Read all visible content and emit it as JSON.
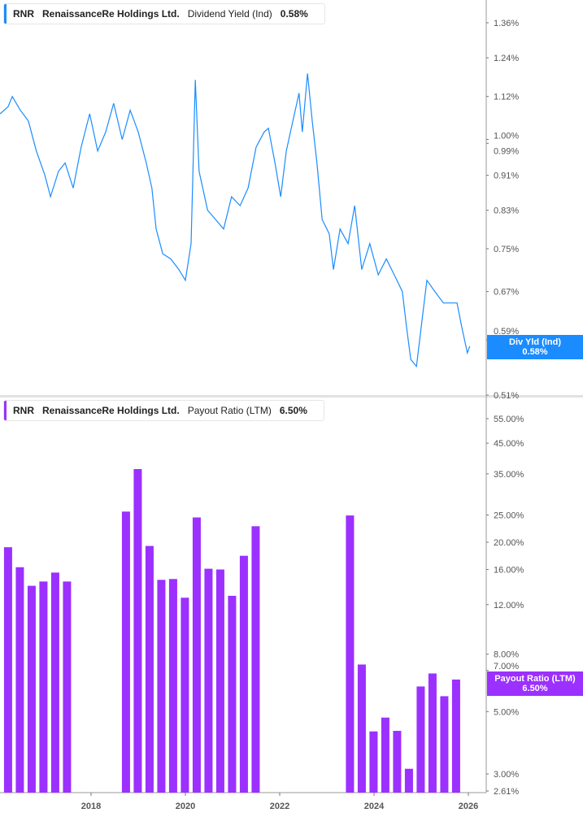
{
  "top_legend": {
    "ticker": "RNR",
    "company": "RenaissanceRe Holdings Ltd.",
    "metric": "Dividend Yield (Ind)",
    "value": "0.58%"
  },
  "top_tag": {
    "label": "Div Yld (Ind)",
    "value": "0.58%"
  },
  "bottom_legend": {
    "ticker": "RNR",
    "company": "RenaissanceRe Holdings Ltd.",
    "metric": "Payout Ratio (LTM)",
    "value": "6.50%"
  },
  "bottom_tag": {
    "label": "Payout Ratio (LTM)",
    "value": "6.50%"
  },
  "colors": {
    "yield": "#1a8cff",
    "payout": "#9b30ff"
  },
  "chart_data": [
    {
      "type": "line",
      "series": [
        {
          "name": "Dividend Yield (Ind)",
          "unit": "%",
          "x": [
            2016.07,
            2016.24,
            2016.33,
            2016.5,
            2016.67,
            2016.84,
            2017.02,
            2017.14,
            2017.31,
            2017.45,
            2017.62,
            2017.79,
            2017.97,
            2018.14,
            2018.31,
            2018.48,
            2018.66,
            2018.83,
            2019.0,
            2019.17,
            2019.29,
            2019.38,
            2019.52,
            2019.69,
            2019.86,
            2020.0,
            2020.12,
            2020.21,
            2020.29,
            2020.47,
            2020.64,
            2020.81,
            2020.98,
            2021.16,
            2021.33,
            2021.5,
            2021.67,
            2021.76,
            2021.9,
            2022.02,
            2022.14,
            2022.28,
            2022.41,
            2022.48,
            2022.59,
            2022.69,
            2022.79,
            2022.9,
            2023.05,
            2023.14,
            2023.28,
            2023.45,
            2023.59,
            2023.74,
            2023.91,
            2024.09,
            2024.26,
            2024.43,
            2024.6,
            2024.69,
            2024.78,
            2024.9,
            2025.0,
            2025.12,
            2025.29,
            2025.47,
            2025.64,
            2025.76,
            2025.86,
            2025.98,
            2026.03
          ],
          "y": [
            1.07,
            1.09,
            1.12,
            1.08,
            1.05,
            0.97,
            0.91,
            0.86,
            0.92,
            0.94,
            0.88,
            0.98,
            1.07,
            0.97,
            1.02,
            1.1,
            1.0,
            1.08,
            1.02,
            0.94,
            0.88,
            0.79,
            0.74,
            0.73,
            0.71,
            0.69,
            0.76,
            1.17,
            0.92,
            0.83,
            0.81,
            0.79,
            0.86,
            0.84,
            0.88,
            0.98,
            1.02,
            1.03,
            0.94,
            0.86,
            0.97,
            1.05,
            1.13,
            1.02,
            1.19,
            1.05,
            0.94,
            0.81,
            0.78,
            0.71,
            0.79,
            0.76,
            0.84,
            0.71,
            0.76,
            0.7,
            0.73,
            0.7,
            0.67,
            0.61,
            0.56,
            0.55,
            0.61,
            0.69,
            0.67,
            0.65,
            0.65,
            0.65,
            0.61,
            0.57,
            0.58
          ]
        }
      ],
      "x_ticks": [
        "2018",
        "2020",
        "2022",
        "2024",
        "2026"
      ],
      "y_scale": "log",
      "y_ticks": [
        "1.36%",
        "1.24%",
        "1.12%",
        "1.00%",
        "0.99%",
        "0.91%",
        "0.83%",
        "0.75%",
        "0.67%",
        "0.59%",
        "0.51%"
      ],
      "y_tick_values": [
        1.36,
        1.24,
        1.12,
        1.0,
        0.99,
        0.91,
        0.83,
        0.75,
        0.67,
        0.59,
        0.51
      ],
      "ylim": [
        0.51,
        1.36
      ],
      "xlim": [
        2016.07,
        2026.38
      ],
      "grid": false
    },
    {
      "type": "bar",
      "series": [
        {
          "name": "Payout Ratio (LTM)",
          "unit": "%",
          "categories": [
            "2016-Q1",
            "2016-Q2",
            "2016-Q3",
            "2016-Q4",
            "2017-Q1",
            "2017-Q2",
            "2018-Q3",
            "2018-Q4",
            "2019-Q1",
            "2019-Q2",
            "2019-Q3",
            "2019-Q4",
            "2020-Q1",
            "2020-Q2",
            "2020-Q3",
            "2020-Q4",
            "2021-Q1",
            "2021-Q2",
            "2023-Q2",
            "2023-Q3",
            "2023-Q4",
            "2024-Q1",
            "2024-Q2",
            "2024-Q3",
            "2024-Q4",
            "2025-Q1",
            "2025-Q2",
            "2025-Q3"
          ],
          "x": [
            2016.24,
            2016.49,
            2016.74,
            2016.99,
            2017.24,
            2017.49,
            2018.74,
            2018.99,
            2019.24,
            2019.49,
            2019.74,
            2019.99,
            2020.24,
            2020.49,
            2020.74,
            2020.99,
            2021.24,
            2021.49,
            2023.49,
            2023.74,
            2023.99,
            2024.24,
            2024.49,
            2024.74,
            2024.99,
            2025.24,
            2025.49,
            2025.74
          ],
          "values": [
            19.2,
            16.3,
            14.0,
            14.5,
            15.6,
            14.5,
            25.7,
            36.4,
            19.4,
            14.7,
            14.8,
            12.7,
            24.5,
            16.1,
            16.0,
            12.9,
            17.9,
            22.8,
            24.9,
            7.35,
            4.25,
            4.76,
            4.27,
            3.13,
            6.14,
            6.83,
            5.67,
            6.5
          ]
        }
      ],
      "y_scale": "log",
      "y_ticks": [
        "55.00%",
        "45.00%",
        "35.00%",
        "25.00%",
        "20.00%",
        "16.00%",
        "12.00%",
        "8.00%",
        "7.00%",
        "5.00%",
        "3.00%",
        "2.61%"
      ],
      "y_tick_values": [
        55,
        45,
        35,
        25,
        20,
        16,
        12,
        8,
        7,
        5,
        3,
        2.61
      ],
      "ylim": [
        2.61,
        55
      ],
      "grid": false
    }
  ]
}
